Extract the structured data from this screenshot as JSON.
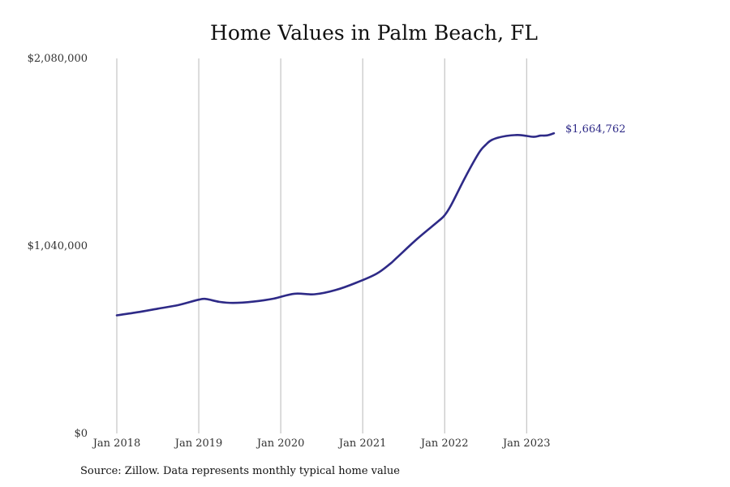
{
  "chart_data": {
    "type": "line",
    "title": "Home Values in Palm Beach, FL",
    "xlabel": "",
    "ylabel": "",
    "ylim": [
      0,
      2080000
    ],
    "y_ticks": [
      {
        "value": 0,
        "label": "$0"
      },
      {
        "value": 1040000,
        "label": "$1,040,000"
      },
      {
        "value": 2080000,
        "label": "$2,080,000"
      }
    ],
    "x_ticks": [
      {
        "value": "2018-01",
        "label": "Jan 2018"
      },
      {
        "value": "2019-01",
        "label": "Jan 2019"
      },
      {
        "value": "2020-01",
        "label": "Jan 2020"
      },
      {
        "value": "2021-01",
        "label": "Jan 2021"
      },
      {
        "value": "2022-01",
        "label": "Jan 2022"
      },
      {
        "value": "2023-01",
        "label": "Jan 2023"
      }
    ],
    "xlim": [
      "2018-01",
      "2024-05"
    ],
    "grid": {
      "vertical": true,
      "horizontal": false
    },
    "line_color": "#2e2a87",
    "end_label": "$1,664,762",
    "series": [
      {
        "x": [
          "2018-01",
          "2018-04",
          "2018-07",
          "2018-10",
          "2019-01",
          "2019-02",
          "2019-04",
          "2019-06",
          "2019-09",
          "2019-12",
          "2020-03",
          "2020-06",
          "2020-09",
          "2020-12",
          "2021-03",
          "2021-05",
          "2021-06",
          "2021-09",
          "2021-12",
          "2022-01",
          "2022-02",
          "2022-04",
          "2022-06",
          "2022-07",
          "2022-08",
          "2022-10",
          "2022-12",
          "2023-02",
          "2023-03",
          "2023-04",
          "2023-05"
        ],
        "values": [
          655000,
          672000,
          692000,
          712000,
          742000,
          746000,
          730000,
          724000,
          731000,
          748000,
          775000,
          772000,
          795000,
          835000,
          885000,
          940000,
          975000,
          1080000,
          1175000,
          1210000,
          1270000,
          1420000,
          1555000,
          1600000,
          1630000,
          1650000,
          1655000,
          1645000,
          1652000,
          1653000,
          1664762
        ]
      }
    ]
  },
  "footer": {
    "source": "Source: Zillow. Data represents monthly typical home value"
  }
}
